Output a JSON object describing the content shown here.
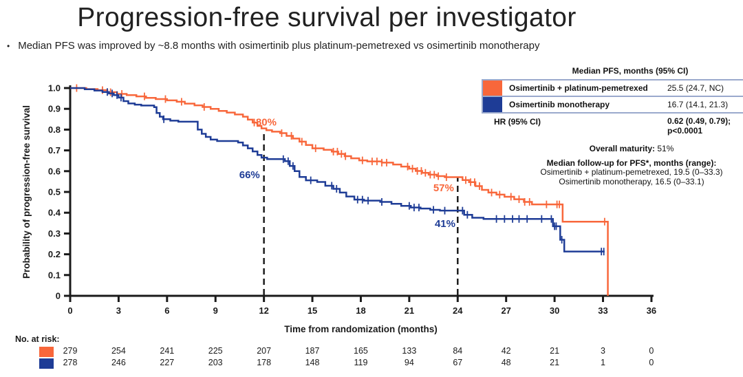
{
  "title": "Progression-free survival per investigator",
  "bullet": "Median PFS was improved by ~8.8 months with osimertinib plus platinum-pemetrexed vs osimertinib monotherapy",
  "colors": {
    "orange": "#F8673B",
    "blue": "#1E3C96",
    "table_border": "#9AA9CC",
    "axis": "#1a1a1a",
    "dashed_line": "#1c1c1c"
  },
  "stats_table": {
    "header": "Median PFS, months (95% CI)",
    "rows": [
      {
        "label": "Osimertinib + platinum-pemetrexed",
        "value": "25.5 (24.7, NC)",
        "color": "#F8673B"
      },
      {
        "label": "Osimertinib monotherapy",
        "value": "16.7 (14.1, 21.3)",
        "color": "#1E3C96"
      }
    ],
    "hr_label": "HR (95% CI)",
    "hr_value_line1": "0.62 (0.49, 0.79);",
    "hr_value_line2": "p<0.0001"
  },
  "notes": {
    "maturity_label": "Overall maturity:",
    "maturity_value": "51%",
    "followup_header": "Median follow-up for PFS*, months (range):",
    "followup_line1": "Osimertinib + platinum-pemetrexed, 19.5 (0–33.3)",
    "followup_line2": "Osimertinib monotherapy, 16.5 (0–33.1)"
  },
  "chart_data": {
    "type": "line",
    "subtype": "kaplan-meier-step",
    "title": "Progression-free survival per investigator",
    "xlabel": "Time from randomization (months)",
    "ylabel": "Probability of progression-free survival",
    "xlim": [
      0,
      36
    ],
    "ylim": [
      0,
      1.0
    ],
    "xticks": [
      0,
      3,
      6,
      9,
      12,
      15,
      18,
      21,
      24,
      27,
      30,
      33,
      36
    ],
    "yticks": [
      0,
      0.1,
      0.2,
      0.3,
      0.4,
      0.5,
      0.6,
      0.7,
      0.8,
      0.9,
      1.0
    ],
    "grid": false,
    "legend_position": "top-right-table",
    "series": [
      {
        "name": "Osimertinib + platinum-pemetrexed",
        "color": "#F8673B",
        "end": 33.3,
        "steps": [
          [
            0,
            1.0
          ],
          [
            1.0,
            0.995
          ],
          [
            1.7,
            0.99
          ],
          [
            2.3,
            0.98
          ],
          [
            2.9,
            0.972
          ],
          [
            3.5,
            0.966
          ],
          [
            4.1,
            0.96
          ],
          [
            4.7,
            0.953
          ],
          [
            5.3,
            0.947
          ],
          [
            6.0,
            0.941
          ],
          [
            6.6,
            0.934
          ],
          [
            7.1,
            0.925
          ],
          [
            7.7,
            0.917
          ],
          [
            8.2,
            0.909
          ],
          [
            8.7,
            0.9
          ],
          [
            9.2,
            0.89
          ],
          [
            9.7,
            0.882
          ],
          [
            10.2,
            0.873
          ],
          [
            10.7,
            0.862
          ],
          [
            11.0,
            0.848
          ],
          [
            11.3,
            0.834
          ],
          [
            11.6,
            0.818
          ],
          [
            11.85,
            0.806
          ],
          [
            12.15,
            0.797
          ],
          [
            12.5,
            0.79
          ],
          [
            13.0,
            0.783
          ],
          [
            13.4,
            0.77
          ],
          [
            13.8,
            0.757
          ],
          [
            14.2,
            0.742
          ],
          [
            14.6,
            0.726
          ],
          [
            15.0,
            0.71
          ],
          [
            15.7,
            0.703
          ],
          [
            16.2,
            0.694
          ],
          [
            16.6,
            0.683
          ],
          [
            17.0,
            0.672
          ],
          [
            17.4,
            0.662
          ],
          [
            17.9,
            0.652
          ],
          [
            18.4,
            0.647
          ],
          [
            19.3,
            0.641
          ],
          [
            20.0,
            0.632
          ],
          [
            20.5,
            0.622
          ],
          [
            21.0,
            0.612
          ],
          [
            21.4,
            0.601
          ],
          [
            21.8,
            0.592
          ],
          [
            22.2,
            0.583
          ],
          [
            22.7,
            0.576
          ],
          [
            23.2,
            0.571
          ],
          [
            24.3,
            0.557
          ],
          [
            24.7,
            0.547
          ],
          [
            25.1,
            0.528
          ],
          [
            25.5,
            0.51
          ],
          [
            25.9,
            0.497
          ],
          [
            26.4,
            0.487
          ],
          [
            26.9,
            0.477
          ],
          [
            27.5,
            0.465
          ],
          [
            28.1,
            0.452
          ],
          [
            28.6,
            0.44
          ],
          [
            30.5,
            0.357
          ],
          [
            33.3,
            0
          ]
        ],
        "censor_times": [
          0.4,
          2.0,
          2.5,
          3.2,
          4.6,
          5.9,
          6.9,
          8.3,
          11.4,
          13.1,
          13.7,
          14.35,
          15.2,
          16.3,
          16.55,
          16.8,
          17.05,
          18.1,
          18.7,
          19.0,
          19.3,
          19.6,
          20.9,
          21.2,
          21.5,
          21.75,
          22.0,
          22.3,
          22.55,
          22.8,
          23.3,
          24.5,
          24.8,
          25.05,
          25.35,
          26.1,
          26.6,
          27.3,
          27.8,
          28.15,
          28.45,
          29.5,
          30.15,
          30.3,
          33.1
        ]
      },
      {
        "name": "Osimertinib monotherapy",
        "color": "#1E3C96",
        "end": 33.1,
        "steps": [
          [
            0,
            1.0
          ],
          [
            0.9,
            0.994
          ],
          [
            1.5,
            0.988
          ],
          [
            2.0,
            0.981
          ],
          [
            2.4,
            0.974
          ],
          [
            2.7,
            0.966
          ],
          [
            3.0,
            0.954
          ],
          [
            3.3,
            0.937
          ],
          [
            3.6,
            0.926
          ],
          [
            4.0,
            0.92
          ],
          [
            4.4,
            0.916
          ],
          [
            5.2,
            0.908
          ],
          [
            5.35,
            0.88
          ],
          [
            5.55,
            0.862
          ],
          [
            5.75,
            0.85
          ],
          [
            6.2,
            0.843
          ],
          [
            6.7,
            0.838
          ],
          [
            7.9,
            0.8
          ],
          [
            8.15,
            0.78
          ],
          [
            8.4,
            0.765
          ],
          [
            8.7,
            0.752
          ],
          [
            9.1,
            0.745
          ],
          [
            10.4,
            0.738
          ],
          [
            10.7,
            0.724
          ],
          [
            11.0,
            0.71
          ],
          [
            11.3,
            0.695
          ],
          [
            11.6,
            0.678
          ],
          [
            11.85,
            0.665
          ],
          [
            12.2,
            0.658
          ],
          [
            13.3,
            0.648
          ],
          [
            13.6,
            0.625
          ],
          [
            13.9,
            0.6
          ],
          [
            14.2,
            0.572
          ],
          [
            14.6,
            0.556
          ],
          [
            15.3,
            0.548
          ],
          [
            15.8,
            0.53
          ],
          [
            16.3,
            0.515
          ],
          [
            16.7,
            0.497
          ],
          [
            17.1,
            0.478
          ],
          [
            17.6,
            0.463
          ],
          [
            18.2,
            0.458
          ],
          [
            19.2,
            0.452
          ],
          [
            19.9,
            0.443
          ],
          [
            20.5,
            0.433
          ],
          [
            21.1,
            0.425
          ],
          [
            21.7,
            0.42
          ],
          [
            22.3,
            0.414
          ],
          [
            22.9,
            0.41
          ],
          [
            24.4,
            0.39
          ],
          [
            24.9,
            0.376
          ],
          [
            25.6,
            0.37
          ],
          [
            29.9,
            0.335
          ],
          [
            30.35,
            0.27
          ],
          [
            30.6,
            0.213
          ]
        ],
        "censor_times": [
          2.3,
          2.6,
          2.9,
          3.15,
          5.8,
          13.2,
          13.5,
          13.8,
          14.9,
          16.2,
          16.5,
          17.8,
          18.1,
          18.45,
          19.3,
          21.0,
          21.3,
          21.6,
          22.5,
          23.2,
          24.3,
          24.6,
          26.4,
          26.9,
          27.4,
          27.8,
          28.3,
          29.2,
          29.8,
          30.0,
          30.1,
          30.45,
          32.9,
          33.05
        ]
      }
    ],
    "dashed_lines": [
      {
        "x": 12,
        "top": 0.797
      },
      {
        "x": 24,
        "top": 0.571
      }
    ],
    "annotations": [
      {
        "text": "80%",
        "x": 11.5,
        "y": 0.82,
        "anchor": "start",
        "color": "#F8673B"
      },
      {
        "text": "66%",
        "x": 11.75,
        "y": 0.566,
        "anchor": "end",
        "color": "#1E3C96"
      },
      {
        "text": "57%",
        "x": 23.77,
        "y": 0.503,
        "anchor": "end",
        "color": "#F8673B"
      },
      {
        "text": "41%",
        "x": 23.86,
        "y": 0.331,
        "anchor": "end",
        "color": "#1E3C96"
      }
    ]
  },
  "risk_table": {
    "label": "No. at risk:",
    "times": [
      0,
      3,
      6,
      9,
      12,
      15,
      18,
      21,
      24,
      27,
      30,
      33,
      36
    ],
    "rows": [
      {
        "name": "Osimertinib + platinum-pemetrexed",
        "color": "#F8673B",
        "values": [
          279,
          254,
          241,
          225,
          207,
          187,
          165,
          133,
          84,
          42,
          21,
          3,
          0
        ]
      },
      {
        "name": "Osimertinib monotherapy",
        "color": "#1E3C96",
        "values": [
          278,
          246,
          227,
          203,
          178,
          148,
          119,
          94,
          67,
          48,
          21,
          1,
          0
        ]
      }
    ]
  }
}
